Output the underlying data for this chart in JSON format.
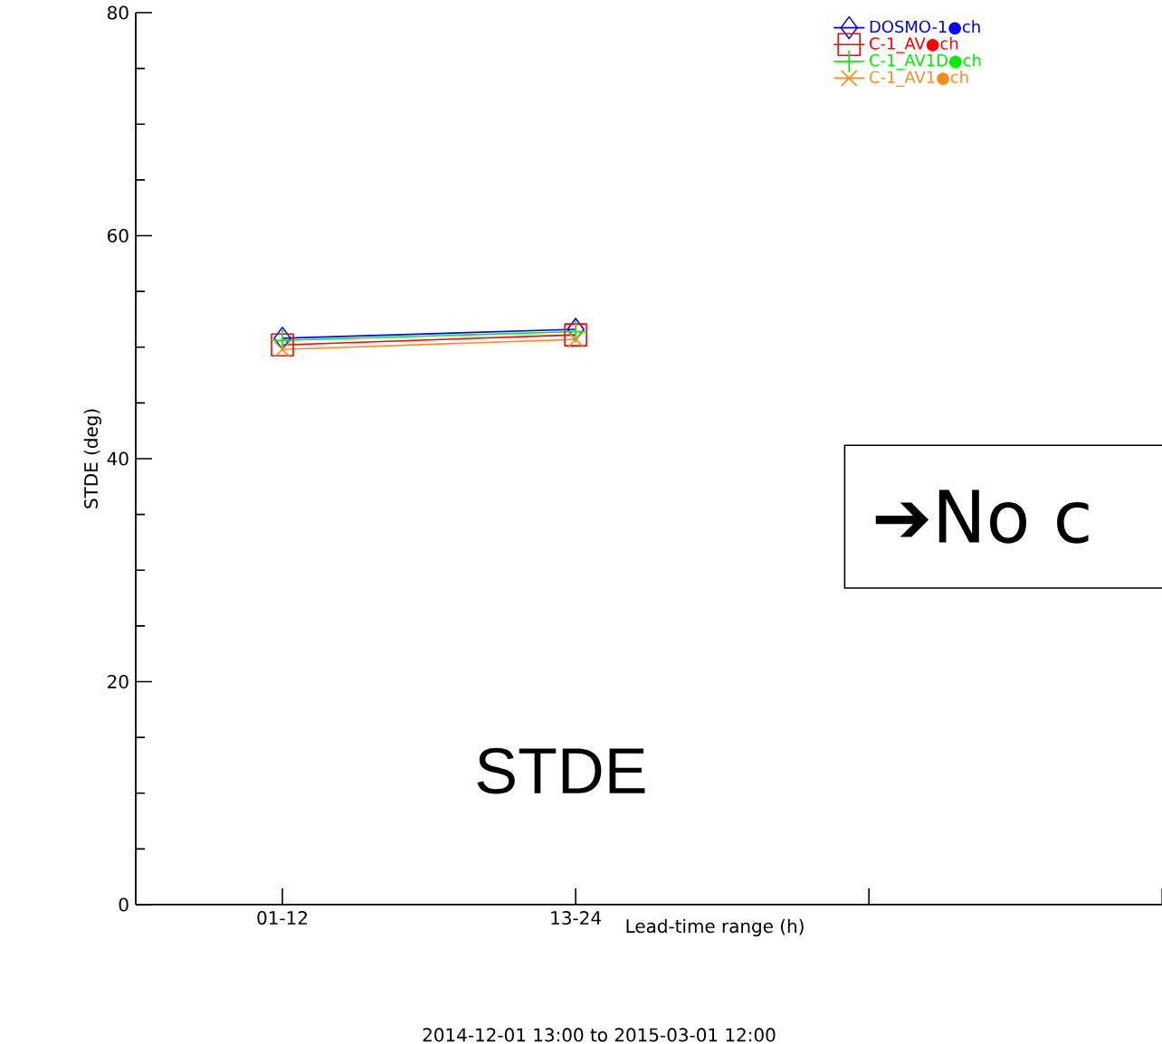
{
  "chart_data": {
    "type": "line",
    "xlabel": "Lead-time range (h)",
    "ylabel": "STDE (deg)",
    "categories": [
      "01-12",
      "13-24",
      null,
      null
    ],
    "ylim": [
      0,
      80
    ],
    "yticks": [
      0,
      20,
      40,
      60,
      80
    ],
    "legend": "top right",
    "series": [
      {
        "name": "DOSMO-1●ch",
        "color": "#0000ff",
        "marker": "diamond",
        "values": [
          50.8,
          51.6,
          null,
          null
        ]
      },
      {
        "name": "C-1_AV●ch",
        "color": "#ff0000",
        "marker": "square",
        "values": [
          50.2,
          51.1,
          null,
          null
        ]
      },
      {
        "name": "C-1_AV1D●ch",
        "color": "#00ee00",
        "marker": "plus",
        "values": [
          50.6,
          51.4,
          null,
          null
        ]
      },
      {
        "name": "C-1_AV1●ch",
        "color": "#ff8c1a",
        "marker": "cross",
        "values": [
          49.8,
          50.7,
          null,
          null
        ]
      }
    ],
    "annotations": [
      "2014-12-01 13:00 to 2015-03-01 12:00",
      "STDE",
      "➔No c"
    ]
  }
}
